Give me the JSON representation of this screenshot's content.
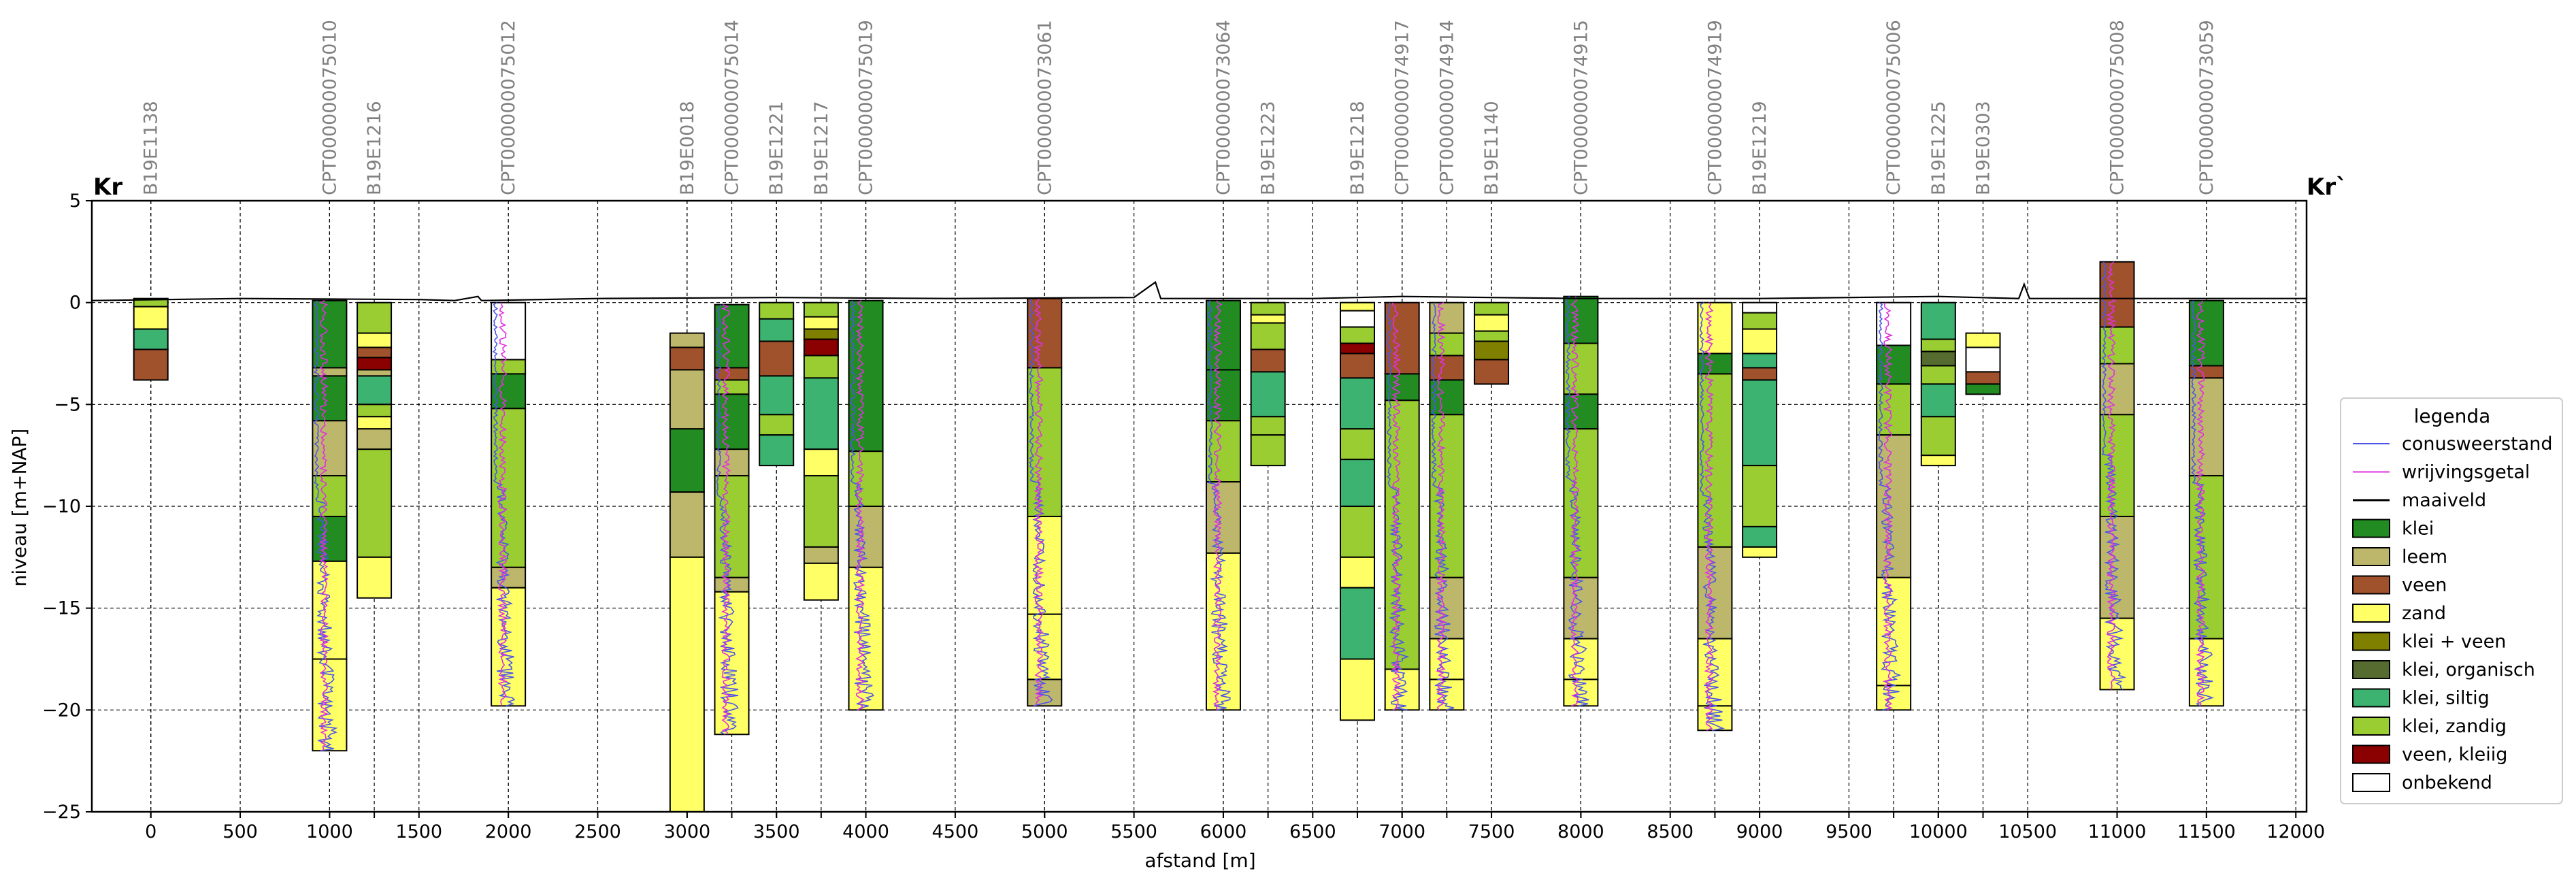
{
  "chart_data": {
    "type": "geological-cross-section",
    "title_left": "Kr",
    "title_right": "Kr`",
    "xlabel": "afstand [m]",
    "ylabel": "niveau [m+NAP]",
    "xlim": [
      -330,
      12060
    ],
    "ylim": [
      -25,
      5
    ],
    "yticks": [
      5,
      0,
      -5,
      -10,
      -15,
      -20,
      -25
    ],
    "ytick_labels": [
      "5",
      "0",
      "−5",
      "−10",
      "−15",
      "−20",
      "−25"
    ],
    "xticks": [
      0,
      500,
      1000,
      1500,
      2000,
      2500,
      3000,
      3500,
      4000,
      4500,
      5000,
      5500,
      6000,
      6500,
      7000,
      7500,
      8000,
      8500,
      9000,
      9500,
      10000,
      10500,
      11000,
      11500,
      12000
    ],
    "grid": true,
    "colors": {
      "klei": "#228B22",
      "leem": "#BDB76B",
      "veen": "#A0522D",
      "zand": "#FFFF66",
      "klei_veen": "#808000",
      "klei_organisch": "#556B2F",
      "klei_siltig": "#3CB371",
      "klei_zandig": "#9ACD32",
      "veen_kleiig": "#8B0000",
      "onbekend": "#FFFFFF",
      "conus": "#4C56E6",
      "wrijving": "#E030E0"
    },
    "legend": {
      "title": "legenda",
      "position": "right",
      "entries": [
        {
          "label": "conusweerstand",
          "kind": "line",
          "color": "#4C56E6"
        },
        {
          "label": "wrijvingsgetal",
          "kind": "line",
          "color": "#E030E0"
        },
        {
          "label": "maaiveld",
          "kind": "line",
          "color": "#000000"
        },
        {
          "label": "klei",
          "kind": "box",
          "color": "#228B22"
        },
        {
          "label": "leem",
          "kind": "box",
          "color": "#BDB76B"
        },
        {
          "label": "veen",
          "kind": "box",
          "color": "#A0522D"
        },
        {
          "label": "zand",
          "kind": "box",
          "color": "#FFFF66"
        },
        {
          "label": "klei + veen",
          "kind": "box",
          "color": "#808000"
        },
        {
          "label": "klei, organisch",
          "kind": "box",
          "color": "#556B2F"
        },
        {
          "label": "klei, siltig",
          "kind": "box",
          "color": "#3CB371"
        },
        {
          "label": "klei, zandig",
          "kind": "box",
          "color": "#9ACD32"
        },
        {
          "label": "veen, kleiig",
          "kind": "box",
          "color": "#8B0000"
        },
        {
          "label": "onbekend",
          "kind": "box",
          "color": "#FFFFFF"
        }
      ]
    },
    "maaiveld_points": [
      [
        -330,
        0.1
      ],
      [
        500,
        0.2
      ],
      [
        1500,
        0.15
      ],
      [
        1700,
        0.1
      ],
      [
        1830,
        0.3
      ],
      [
        1850,
        0.1
      ],
      [
        2500,
        0.2
      ],
      [
        3500,
        0.25
      ],
      [
        4500,
        0.2
      ],
      [
        5500,
        0.25
      ],
      [
        5620,
        1.0
      ],
      [
        5650,
        0.2
      ],
      [
        6500,
        0.2
      ],
      [
        7000,
        0.3
      ],
      [
        8000,
        0.2
      ],
      [
        9000,
        0.2
      ],
      [
        10000,
        0.3
      ],
      [
        10450,
        0.2
      ],
      [
        10480,
        0.9
      ],
      [
        10510,
        0.2
      ],
      [
        11000,
        0.2
      ],
      [
        12060,
        0.2
      ]
    ],
    "boreholes": [
      {
        "name": "B19E1138",
        "x": 0,
        "layers": [
          [
            0.2,
            -0.2,
            "klei_zandig"
          ],
          [
            -0.2,
            -1.3,
            "zand"
          ],
          [
            -1.3,
            -2.3,
            "klei_siltig"
          ],
          [
            -2.3,
            -3.8,
            "veen"
          ]
        ]
      },
      {
        "name": "CPT000000075010",
        "x": 1000,
        "cpt": true,
        "layers": [
          [
            0.1,
            -3.2,
            "klei"
          ],
          [
            -3.2,
            -3.6,
            "leem"
          ],
          [
            -3.6,
            -5.8,
            "klei"
          ],
          [
            -5.8,
            -8.5,
            "leem"
          ],
          [
            -8.5,
            -10.5,
            "klei_zandig"
          ],
          [
            -10.5,
            -12.7,
            "klei"
          ],
          [
            -12.7,
            -17.5,
            "zand"
          ],
          [
            -17.5,
            -22.0,
            "zand"
          ]
        ]
      },
      {
        "name": "B19E1216",
        "x": 1250,
        "layers": [
          [
            0.0,
            -1.5,
            "klei_zandig"
          ],
          [
            -1.5,
            -2.2,
            "zand"
          ],
          [
            -2.2,
            -2.7,
            "veen"
          ],
          [
            -2.7,
            -3.3,
            "veen_kleiig"
          ],
          [
            -3.3,
            -3.6,
            "leem"
          ],
          [
            -3.6,
            -5.0,
            "klei_siltig"
          ],
          [
            -5.0,
            -5.6,
            "klei_zandig"
          ],
          [
            -5.6,
            -6.2,
            "zand"
          ],
          [
            -6.2,
            -7.2,
            "leem"
          ],
          [
            -7.2,
            -12.5,
            "klei_zandig"
          ],
          [
            -12.5,
            -14.5,
            "zand"
          ]
        ]
      },
      {
        "name": "CPT000000075012",
        "x": 2000,
        "cpt": true,
        "layers": [
          [
            0.0,
            -2.8,
            "onbekend"
          ],
          [
            -2.8,
            -3.5,
            "klei_zandig"
          ],
          [
            -3.5,
            -5.2,
            "klei"
          ],
          [
            -5.2,
            -13.0,
            "klei_zandig"
          ],
          [
            -13.0,
            -14.0,
            "leem"
          ],
          [
            -14.0,
            -19.8,
            "zand"
          ]
        ]
      },
      {
        "name": "B19E0018",
        "x": 3000,
        "layers": [
          [
            -1.5,
            -2.2,
            "leem"
          ],
          [
            -2.2,
            -3.3,
            "veen"
          ],
          [
            -3.3,
            -6.2,
            "leem"
          ],
          [
            -6.2,
            -9.3,
            "klei"
          ],
          [
            -9.3,
            -12.5,
            "leem"
          ],
          [
            -12.5,
            -25.0,
            "zand"
          ]
        ]
      },
      {
        "name": "CPT000000075014",
        "x": 3250,
        "cpt": true,
        "layers": [
          [
            -0.1,
            -3.2,
            "klei"
          ],
          [
            -3.2,
            -3.8,
            "veen"
          ],
          [
            -3.8,
            -4.5,
            "klei_zandig"
          ],
          [
            -4.5,
            -7.2,
            "klei"
          ],
          [
            -7.2,
            -8.5,
            "leem"
          ],
          [
            -8.5,
            -13.5,
            "klei_zandig"
          ],
          [
            -13.5,
            -14.2,
            "leem"
          ],
          [
            -14.2,
            -21.2,
            "zand"
          ]
        ]
      },
      {
        "name": "B19E1221",
        "x": 3500,
        "layers": [
          [
            0.0,
            -0.8,
            "klei_zandig"
          ],
          [
            -0.8,
            -1.9,
            "klei_siltig"
          ],
          [
            -1.9,
            -3.6,
            "veen"
          ],
          [
            -3.6,
            -5.5,
            "klei_siltig"
          ],
          [
            -5.5,
            -6.5,
            "klei_zandig"
          ],
          [
            -6.5,
            -8.0,
            "klei_siltig"
          ]
        ]
      },
      {
        "name": "B19E1217",
        "x": 3750,
        "layers": [
          [
            0.0,
            -0.7,
            "klei_zandig"
          ],
          [
            -0.7,
            -1.3,
            "zand"
          ],
          [
            -1.3,
            -1.8,
            "klei_veen"
          ],
          [
            -1.8,
            -2.6,
            "veen_kleiig"
          ],
          [
            -2.6,
            -3.7,
            "klei_zandig"
          ],
          [
            -3.7,
            -7.2,
            "klei_siltig"
          ],
          [
            -7.2,
            -8.5,
            "zand"
          ],
          [
            -8.5,
            -12.0,
            "klei_zandig"
          ],
          [
            -12.0,
            -12.8,
            "leem"
          ],
          [
            -12.8,
            -14.6,
            "zand"
          ]
        ]
      },
      {
        "name": "CPT000000075019",
        "x": 4000,
        "cpt": true,
        "layers": [
          [
            0.1,
            -7.3,
            "klei"
          ],
          [
            -7.3,
            -10.0,
            "klei_zandig"
          ],
          [
            -10.0,
            -13.0,
            "leem"
          ],
          [
            -13.0,
            -20.0,
            "zand"
          ]
        ]
      },
      {
        "name": "CPT000000073061",
        "x": 5000,
        "cpt": true,
        "layers": [
          [
            0.2,
            -3.2,
            "veen"
          ],
          [
            -3.2,
            -10.5,
            "klei_zandig"
          ],
          [
            -10.5,
            -15.3,
            "zand"
          ],
          [
            -15.3,
            -18.5,
            "zand"
          ],
          [
            -18.5,
            -19.8,
            "leem"
          ]
        ]
      },
      {
        "name": "CPT000000073064",
        "x": 6000,
        "cpt": true,
        "layers": [
          [
            0.1,
            -3.3,
            "klei"
          ],
          [
            -3.3,
            -5.8,
            "klei"
          ],
          [
            -5.8,
            -8.8,
            "klei_zandig"
          ],
          [
            -8.8,
            -12.3,
            "leem"
          ],
          [
            -12.3,
            -20.0,
            "zand"
          ]
        ]
      },
      {
        "name": "B19E1223",
        "x": 6250,
        "layers": [
          [
            0.0,
            -0.6,
            "klei_zandig"
          ],
          [
            -0.6,
            -1.0,
            "zand"
          ],
          [
            -1.0,
            -2.3,
            "klei_zandig"
          ],
          [
            -2.3,
            -3.4,
            "veen"
          ],
          [
            -3.4,
            -5.6,
            "klei_siltig"
          ],
          [
            -5.6,
            -6.5,
            "klei_zandig"
          ],
          [
            -6.5,
            -8.0,
            "klei_zandig"
          ]
        ]
      },
      {
        "name": "B19E1218",
        "x": 6750,
        "layers": [
          [
            0.0,
            -0.4,
            "zand"
          ],
          [
            -0.4,
            -1.2,
            "onbekend"
          ],
          [
            -1.2,
            -2.0,
            "klei_zandig"
          ],
          [
            -2.0,
            -2.5,
            "veen_kleiig"
          ],
          [
            -2.5,
            -3.7,
            "veen"
          ],
          [
            -3.7,
            -6.2,
            "klei_siltig"
          ],
          [
            -6.2,
            -7.7,
            "klei_zandig"
          ],
          [
            -7.7,
            -10.0,
            "klei_siltig"
          ],
          [
            -10.0,
            -12.5,
            "klei_zandig"
          ],
          [
            -12.5,
            -14.0,
            "zand"
          ],
          [
            -14.0,
            -17.5,
            "klei_siltig"
          ],
          [
            -17.5,
            -20.5,
            "zand"
          ]
        ]
      },
      {
        "name": "CPT000000074917",
        "x": 7000,
        "cpt": true,
        "layers": [
          [
            0.0,
            -3.5,
            "veen"
          ],
          [
            -3.5,
            -4.8,
            "klei"
          ],
          [
            -4.8,
            -18.0,
            "klei_zandig"
          ],
          [
            -18.0,
            -20.0,
            "zand"
          ]
        ]
      },
      {
        "name": "CPT000000074914",
        "x": 7250,
        "cpt": true,
        "layers": [
          [
            0.0,
            -1.5,
            "leem"
          ],
          [
            -1.5,
            -2.6,
            "klei_zandig"
          ],
          [
            -2.6,
            -3.8,
            "veen"
          ],
          [
            -3.8,
            -5.5,
            "klei"
          ],
          [
            -5.5,
            -13.5,
            "klei_zandig"
          ],
          [
            -13.5,
            -16.5,
            "leem"
          ],
          [
            -16.5,
            -18.5,
            "zand"
          ],
          [
            -18.5,
            -20.0,
            "zand"
          ]
        ]
      },
      {
        "name": "B19E1140",
        "x": 7500,
        "layers": [
          [
            0.0,
            -0.6,
            "klei_zandig"
          ],
          [
            -0.6,
            -1.4,
            "zand"
          ],
          [
            -1.4,
            -1.9,
            "klei_zandig"
          ],
          [
            -1.9,
            -2.8,
            "klei_veen"
          ],
          [
            -2.8,
            -4.0,
            "veen"
          ]
        ]
      },
      {
        "name": "CPT000000074915",
        "x": 8000,
        "cpt": true,
        "layers": [
          [
            0.3,
            -2.0,
            "klei"
          ],
          [
            -2.0,
            -4.5,
            "klei_zandig"
          ],
          [
            -4.5,
            -6.2,
            "klei"
          ],
          [
            -6.2,
            -13.5,
            "klei_zandig"
          ],
          [
            -13.5,
            -16.5,
            "leem"
          ],
          [
            -16.5,
            -18.5,
            "zand"
          ],
          [
            -18.5,
            -19.8,
            "zand"
          ]
        ]
      },
      {
        "name": "CPT000000074919",
        "x": 8750,
        "cpt": true,
        "layers": [
          [
            0.0,
            -2.5,
            "zand"
          ],
          [
            -2.5,
            -3.5,
            "klei"
          ],
          [
            -3.5,
            -12.0,
            "klei_zandig"
          ],
          [
            -12.0,
            -16.5,
            "leem"
          ],
          [
            -16.5,
            -19.8,
            "zand"
          ],
          [
            -19.8,
            -21.0,
            "zand"
          ]
        ]
      },
      {
        "name": "B19E1219",
        "x": 9000,
        "layers": [
          [
            0.0,
            -0.5,
            "onbekend"
          ],
          [
            -0.5,
            -1.3,
            "klei_zandig"
          ],
          [
            -1.3,
            -2.5,
            "zand"
          ],
          [
            -2.5,
            -3.2,
            "klei_siltig"
          ],
          [
            -3.2,
            -3.8,
            "veen"
          ],
          [
            -3.8,
            -8.0,
            "klei_siltig"
          ],
          [
            -8.0,
            -11.0,
            "klei_zandig"
          ],
          [
            -11.0,
            -12.0,
            "klei_siltig"
          ],
          [
            -12.0,
            -12.5,
            "zand"
          ]
        ]
      },
      {
        "name": "CPT000000075006",
        "x": 9750,
        "cpt": true,
        "layers": [
          [
            0.0,
            -2.1,
            "onbekend"
          ],
          [
            -2.1,
            -4.0,
            "klei"
          ],
          [
            -4.0,
            -6.5,
            "klei_zandig"
          ],
          [
            -6.5,
            -13.5,
            "leem"
          ],
          [
            -13.5,
            -18.8,
            "zand"
          ],
          [
            -18.8,
            -20.0,
            "zand"
          ]
        ]
      },
      {
        "name": "B19E1225",
        "x": 10000,
        "layers": [
          [
            0.0,
            -1.8,
            "klei_siltig"
          ],
          [
            -1.8,
            -2.4,
            "klei_zandig"
          ],
          [
            -2.4,
            -3.1,
            "klei_organisch"
          ],
          [
            -3.1,
            -4.0,
            "klei_zandig"
          ],
          [
            -4.0,
            -5.6,
            "klei_siltig"
          ],
          [
            -5.6,
            -7.5,
            "klei_zandig"
          ],
          [
            -7.5,
            -8.0,
            "zand"
          ]
        ]
      },
      {
        "name": "B19E0303",
        "x": 10250,
        "layers": [
          [
            -1.5,
            -2.2,
            "zand"
          ],
          [
            -2.2,
            -3.4,
            "onbekend"
          ],
          [
            -3.4,
            -4.0,
            "veen"
          ],
          [
            -4.0,
            -4.5,
            "klei"
          ]
        ]
      },
      {
        "name": "CPT000000075008",
        "x": 11000,
        "cpt": true,
        "layers": [
          [
            2.0,
            -1.2,
            "veen"
          ],
          [
            -1.2,
            -3.0,
            "klei_zandig"
          ],
          [
            -3.0,
            -5.5,
            "leem"
          ],
          [
            -5.5,
            -10.5,
            "klei_zandig"
          ],
          [
            -10.5,
            -15.5,
            "leem"
          ],
          [
            -15.5,
            -19.0,
            "zand"
          ]
        ]
      },
      {
        "name": "CPT000000073059",
        "x": 11500,
        "cpt": true,
        "layers": [
          [
            0.1,
            -3.1,
            "klei"
          ],
          [
            -3.1,
            -3.7,
            "veen"
          ],
          [
            -3.7,
            -8.5,
            "leem"
          ],
          [
            -8.5,
            -16.5,
            "klei_zandig"
          ],
          [
            -16.5,
            -19.8,
            "zand"
          ]
        ]
      }
    ]
  }
}
